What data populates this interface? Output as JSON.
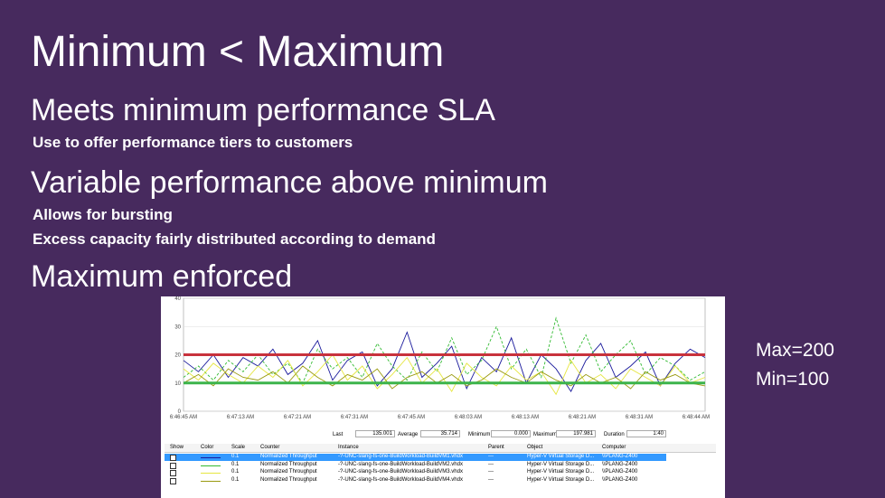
{
  "title": "Minimum < Maximum",
  "sections": [
    {
      "heading": "Meets minimum performance SLA",
      "points": [
        "Use to offer performance tiers to customers"
      ]
    },
    {
      "heading": "Variable performance above minimum",
      "points": [
        "Allows for bursting",
        "Excess capacity fairly distributed according to demand"
      ]
    },
    {
      "heading": "Maximum enforced",
      "points": []
    }
  ],
  "annotations": [
    "Max=200",
    "Min=100"
  ],
  "chart_data": {
    "type": "line",
    "ylim": [
      0,
      40
    ],
    "yticks": [
      0,
      10,
      20,
      30,
      40
    ],
    "x_labels": [
      "6:46:45 AM",
      "6:47:13 AM",
      "6:47:21 AM",
      "6:47:31 AM",
      "6:47:45 AM",
      "6:48:03 AM",
      "6:48:13 AM",
      "6:48:21 AM",
      "6:48:31 AM",
      "6:48:44 AM"
    ],
    "reference_lines": [
      {
        "value": 20,
        "color": "#c8323c"
      },
      {
        "value": 10,
        "color": "#3cb44b"
      }
    ],
    "series": [
      {
        "color": "#1a1a9c",
        "dash": false,
        "values": [
          18,
          14,
          20,
          12,
          19,
          16,
          22,
          13,
          17,
          25,
          11,
          18,
          21,
          9,
          15,
          28,
          12,
          17,
          23,
          8,
          19,
          14,
          26,
          10,
          20,
          15,
          7,
          18,
          24,
          12,
          16,
          21,
          9,
          17,
          22,
          19
        ]
      },
      {
        "color": "#33bb33",
        "dash": true,
        "values": [
          12,
          16,
          11,
          18,
          14,
          20,
          13,
          17,
          10,
          22,
          15,
          19,
          12,
          24,
          16,
          11,
          21,
          14,
          26,
          13,
          18,
          30,
          15,
          22,
          12,
          33,
          17,
          27,
          14,
          20,
          25,
          13,
          19,
          16,
          11,
          14
        ]
      },
      {
        "color": "#e6e640",
        "dash": false,
        "values": [
          15,
          11,
          17,
          13,
          10,
          16,
          12,
          18,
          9,
          14,
          20,
          11,
          16,
          8,
          13,
          19,
          10,
          15,
          7,
          17,
          12,
          9,
          16,
          11,
          14,
          6,
          18,
          10,
          13,
          8,
          15,
          12,
          9,
          16,
          10,
          12
        ]
      },
      {
        "color": "#9a9a10",
        "dash": false,
        "values": [
          10,
          13,
          9,
          15,
          12,
          11,
          14,
          10,
          16,
          12,
          9,
          13,
          11,
          15,
          8,
          12,
          14,
          10,
          13,
          9,
          11,
          15,
          12,
          10,
          14,
          11,
          9,
          13,
          10,
          12,
          8,
          14,
          11,
          13,
          10,
          9
        ]
      }
    ],
    "stats": [
      {
        "label": "Last",
        "value": "135.001"
      },
      {
        "label": "Average",
        "value": "35.714"
      },
      {
        "label": "Minimum",
        "value": "0.000"
      },
      {
        "label": "Maximum",
        "value": "197.981"
      },
      {
        "label": "Duration",
        "value": "1:40"
      }
    ],
    "table": {
      "columns": [
        "Show",
        "Color",
        "Scale",
        "Counter",
        "Instance",
        "Parent",
        "Object",
        "Computer"
      ],
      "rows": [
        {
          "scale": "0.1",
          "counter": "Normalized Throughput",
          "instance": "-?-UNC-slang-fs-one-BuildWorkload-BuildVM1.vhdx",
          "parent": "---",
          "object": "Hyper-V Virtual Storage D...",
          "computer": "\\\\PLANG-Z400"
        },
        {
          "scale": "0.1",
          "counter": "Normalized Throughput",
          "instance": "-?-UNC-slang-fs-one-BuildWorkload-BuildVM2.vhdx",
          "parent": "---",
          "object": "Hyper-V Virtual Storage D...",
          "computer": "\\\\PLANG-Z400"
        },
        {
          "scale": "0.1",
          "counter": "Normalized Throughput",
          "instance": "-?-UNC-slang-fs-one-BuildWorkload-BuildVM3.vhdx",
          "parent": "---",
          "object": "Hyper-V Virtual Storage D...",
          "computer": "\\\\PLANG-Z400"
        },
        {
          "scale": "0.1",
          "counter": "Normalized Throughput",
          "instance": "-?-UNC-slang-fs-one-BuildWorkload-BuildVM4.vhdx",
          "parent": "---",
          "object": "Hyper-V Virtual Storage D...",
          "computer": "\\\\PLANG-Z400"
        }
      ]
    }
  }
}
